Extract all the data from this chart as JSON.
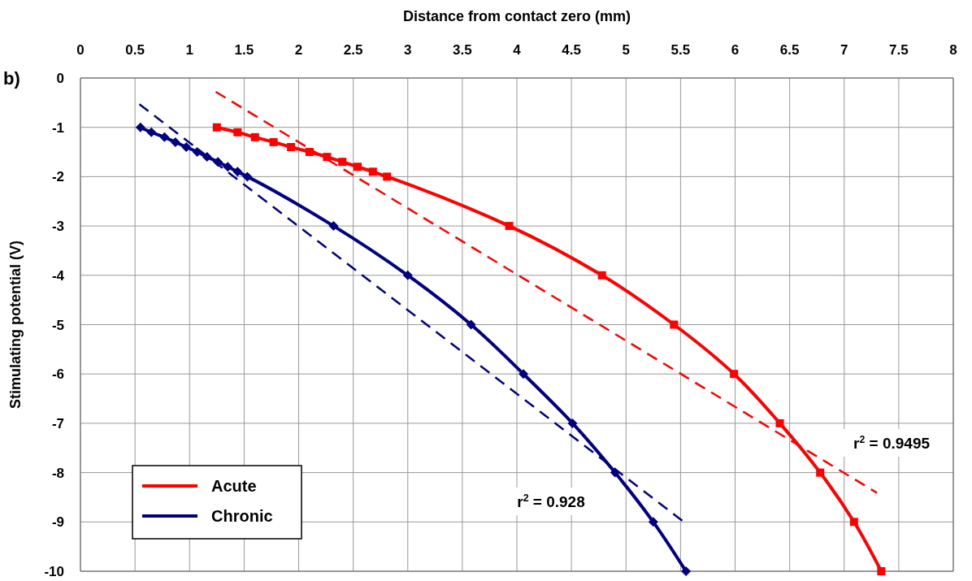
{
  "chart_data": {
    "type": "line",
    "xlabel": "Distance from contact zero (mm)",
    "ylabel": "Stimulating potential (V)",
    "xlim": [
      0,
      8
    ],
    "xticks": [
      0,
      0.5,
      1,
      1.5,
      2,
      2.5,
      3,
      3.5,
      4,
      4.5,
      5,
      5.5,
      6,
      6.5,
      7,
      7.5,
      8
    ],
    "ylim": [
      -10,
      0
    ],
    "yticks": [
      -10,
      -9,
      -8,
      -7,
      -6,
      -5,
      -4,
      -3,
      -2,
      -1,
      0
    ],
    "grid": true,
    "legend": "bottom left",
    "series": [
      {
        "name": "Acute",
        "color": "#ff0000",
        "marker": "square",
        "line_style": "solid",
        "x": [
          1.25,
          1.44,
          1.6,
          1.77,
          1.93,
          2.1,
          2.26,
          2.4,
          2.54,
          2.68,
          2.81,
          3.93,
          4.78,
          5.44,
          5.99,
          6.41,
          6.78,
          7.09,
          7.34
        ],
        "values": [
          -1,
          -1.1,
          -1.2,
          -1.3,
          -1.4,
          -1.5,
          -1.6,
          -1.7,
          -1.8,
          -1.9,
          -2,
          -3,
          -4,
          -5,
          -6,
          -7,
          -8,
          -9,
          -10
        ]
      },
      {
        "name": "Chronic",
        "color": "#000080",
        "marker": "diamond",
        "line_style": "solid",
        "x": [
          0.55,
          0.65,
          0.77,
          0.87,
          0.97,
          1.07,
          1.16,
          1.26,
          1.35,
          1.44,
          1.53,
          2.32,
          3.0,
          3.58,
          4.06,
          4.51,
          4.9,
          5.25,
          5.55
        ],
        "values": [
          -1,
          -1.1,
          -1.2,
          -1.3,
          -1.4,
          -1.5,
          -1.6,
          -1.7,
          -1.8,
          -1.9,
          -2,
          -3,
          -4,
          -5,
          -6,
          -7,
          -8,
          -9,
          -10
        ]
      },
      {
        "type": "line",
        "color": "#ff0000",
        "marker": "none",
        "line_style": "dashed",
        "x": [
          1.24,
          7.3
        ],
        "values": [
          -0.28,
          -8.41
        ]
      },
      {
        "type": "line",
        "color": "#000080",
        "marker": "none",
        "line_style": "dashed",
        "x": [
          0.54,
          5.53
        ],
        "values": [
          -0.53,
          -9.0
        ]
      }
    ],
    "annotations": [
      "b)",
      "r$^{2}$ = 0.928",
      "r$^{2}$ = 0.9495"
    ]
  }
}
